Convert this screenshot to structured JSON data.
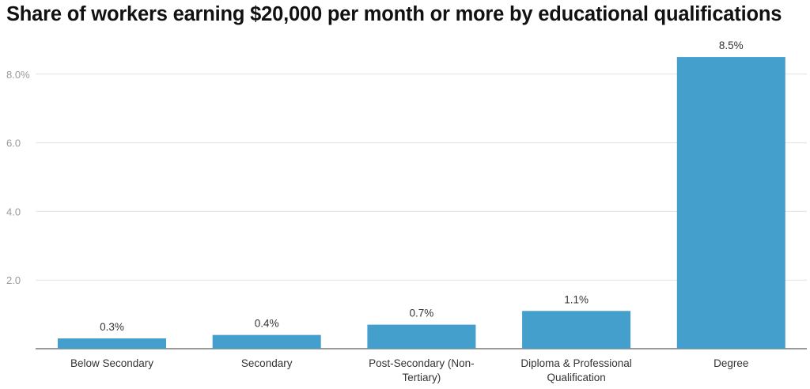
{
  "chart_data": {
    "type": "bar",
    "title": "Share of workers earning $20,000 per month or more by educational qualifications",
    "categories": [
      [
        "Below Secondary"
      ],
      [
        "Secondary"
      ],
      [
        "Post-Secondary (Non-",
        "Tertiary)"
      ],
      [
        "Diploma & Professional",
        "Qualification"
      ],
      [
        "Degree"
      ]
    ],
    "values": [
      0.3,
      0.4,
      0.7,
      1.1,
      8.5
    ],
    "data_labels": [
      "0.3%",
      "0.4%",
      "0.7%",
      "1.1%",
      "8.5%"
    ],
    "y_ticks": [
      {
        "value": 2,
        "label": "2.0"
      },
      {
        "value": 4,
        "label": "4.0"
      },
      {
        "value": 6,
        "label": "6.0"
      },
      {
        "value": 8,
        "label": "8.0%"
      }
    ],
    "ylim": [
      0,
      8.5
    ],
    "xlabel": "",
    "ylabel": "",
    "grid": true,
    "legend": "none",
    "colors": {
      "bar": "#449fcd",
      "grid": "#e2e2e2",
      "axis": "#333333"
    }
  }
}
